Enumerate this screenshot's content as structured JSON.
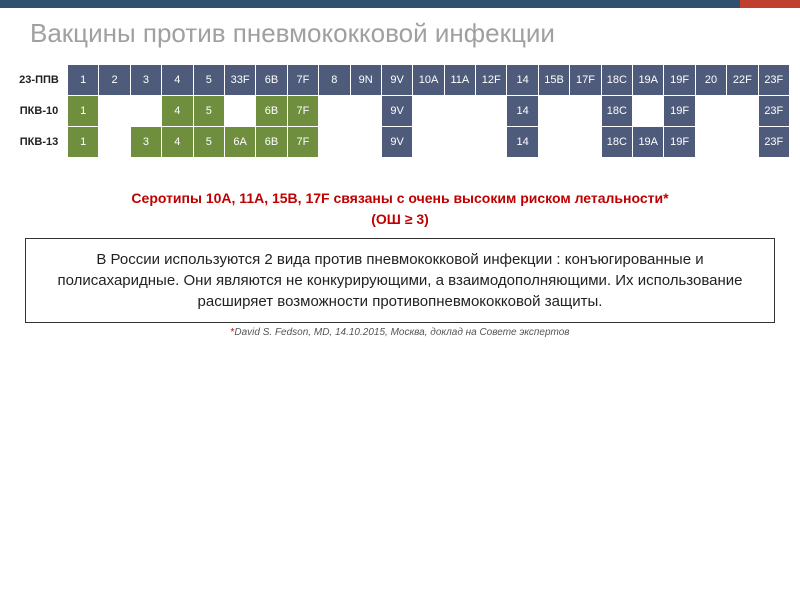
{
  "title": "Вакцины против пневмококковой инфекции",
  "colors": {
    "dark_cell": "#4f5b7a",
    "green_cell": "#6f8f3f",
    "empty_cell": "#ffffff",
    "title_color": "#a0a0a0",
    "red_text": "#c00000",
    "top_bar": "#305070",
    "top_accent": "#c04030"
  },
  "table": {
    "rows": [
      {
        "label": "23-ППВ",
        "cells": [
          {
            "v": "1",
            "c": "dark"
          },
          {
            "v": "2",
            "c": "dark"
          },
          {
            "v": "3",
            "c": "dark"
          },
          {
            "v": "4",
            "c": "dark"
          },
          {
            "v": "5",
            "c": "dark"
          },
          {
            "v": "33F",
            "c": "dark"
          },
          {
            "v": "6B",
            "c": "dark"
          },
          {
            "v": "7F",
            "c": "dark"
          },
          {
            "v": "8",
            "c": "dark"
          },
          {
            "v": "9N",
            "c": "dark"
          },
          {
            "v": "9V",
            "c": "dark"
          },
          {
            "v": "10A",
            "c": "dark"
          },
          {
            "v": "11A",
            "c": "dark"
          },
          {
            "v": "12F",
            "c": "dark"
          },
          {
            "v": "14",
            "c": "dark"
          },
          {
            "v": "15B",
            "c": "dark"
          },
          {
            "v": "17F",
            "c": "dark"
          },
          {
            "v": "18C",
            "c": "dark"
          },
          {
            "v": "19A",
            "c": "dark"
          },
          {
            "v": "19F",
            "c": "dark"
          },
          {
            "v": "20",
            "c": "dark"
          },
          {
            "v": "22F",
            "c": "dark"
          },
          {
            "v": "23F",
            "c": "dark"
          }
        ]
      },
      {
        "label": "ПКВ-10",
        "cells": [
          {
            "v": "1",
            "c": "green"
          },
          {
            "v": "",
            "c": "empty"
          },
          {
            "v": "",
            "c": "empty"
          },
          {
            "v": "4",
            "c": "green"
          },
          {
            "v": "5",
            "c": "green"
          },
          {
            "v": "",
            "c": "empty"
          },
          {
            "v": "6B",
            "c": "green"
          },
          {
            "v": "7F",
            "c": "green"
          },
          {
            "v": "",
            "c": "empty"
          },
          {
            "v": "",
            "c": "empty"
          },
          {
            "v": "9V",
            "c": "dark"
          },
          {
            "v": "",
            "c": "empty"
          },
          {
            "v": "",
            "c": "empty"
          },
          {
            "v": "",
            "c": "empty"
          },
          {
            "v": "14",
            "c": "dark"
          },
          {
            "v": "",
            "c": "empty"
          },
          {
            "v": "",
            "c": "empty"
          },
          {
            "v": "18C",
            "c": "dark"
          },
          {
            "v": "",
            "c": "empty"
          },
          {
            "v": "19F",
            "c": "dark"
          },
          {
            "v": "",
            "c": "empty"
          },
          {
            "v": "",
            "c": "empty"
          },
          {
            "v": "23F",
            "c": "dark"
          }
        ]
      },
      {
        "label": "ПКВ-13",
        "cells": [
          {
            "v": "1",
            "c": "green"
          },
          {
            "v": "",
            "c": "empty"
          },
          {
            "v": "3",
            "c": "green"
          },
          {
            "v": "4",
            "c": "green"
          },
          {
            "v": "5",
            "c": "green"
          },
          {
            "v": "6A",
            "c": "green"
          },
          {
            "v": "6B",
            "c": "green"
          },
          {
            "v": "7F",
            "c": "green"
          },
          {
            "v": "",
            "c": "empty"
          },
          {
            "v": "",
            "c": "empty"
          },
          {
            "v": "9V",
            "c": "dark"
          },
          {
            "v": "",
            "c": "empty"
          },
          {
            "v": "",
            "c": "empty"
          },
          {
            "v": "",
            "c": "empty"
          },
          {
            "v": "14",
            "c": "dark"
          },
          {
            "v": "",
            "c": "empty"
          },
          {
            "v": "",
            "c": "empty"
          },
          {
            "v": "18C",
            "c": "dark"
          },
          {
            "v": "19A",
            "c": "dark"
          },
          {
            "v": "19F",
            "c": "dark"
          },
          {
            "v": "",
            "c": "empty"
          },
          {
            "v": "",
            "c": "empty"
          },
          {
            "v": "23F",
            "c": "dark"
          }
        ]
      }
    ]
  },
  "red_text_line1": "Серотипы 10А, 11А, 15B, 17F связаны с очень высоким риском летальности*",
  "red_text_line2": "(ОШ ≥ 3)",
  "info_box": "В России используются 2 вида против пневмококковой инфекции : конъюгированные и полисахаридные. Они являются не конкурирующими, а взаимодополняющими. Их использование расширяет возможности противопневмококковой защиты.",
  "citation": "David S. Fedson, MD, 14.10.2015, Москва, доклад на Совете экспертов",
  "citation_prefix": "*"
}
